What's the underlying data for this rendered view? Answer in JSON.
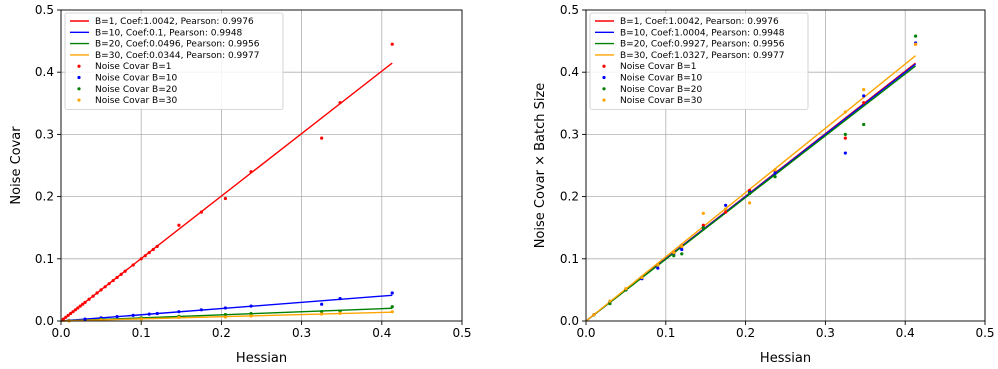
{
  "colors": {
    "B1": "#ff0000",
    "B10": "#0000ff",
    "B20": "#008000",
    "B30": "#ffa500"
  },
  "chart_data": [
    {
      "type": "scatter",
      "xlabel": "Hessian",
      "ylabel": "Noise Covar",
      "xlim": [
        0.0,
        0.5
      ],
      "ylim": [
        0.0,
        0.5
      ],
      "xticks": [
        "0.0",
        "0.1",
        "0.2",
        "0.3",
        "0.4",
        "0.5"
      ],
      "yticks": [
        "0.0",
        "0.1",
        "0.2",
        "0.3",
        "0.4",
        "0.5"
      ],
      "grid": true,
      "legend_position": "upper-left",
      "lines": [
        {
          "name": "B=1, Coef:1.0042, Pearson: 0.9976",
          "color": "#ff0000",
          "slope": 1.0042,
          "x": [
            0.0,
            0.413
          ]
        },
        {
          "name": "B=10, Coef:0.1, Pearson: 0.9948",
          "color": "#0000ff",
          "slope": 0.1,
          "x": [
            0.0,
            0.413
          ]
        },
        {
          "name": "B=20, Coef:0.0496, Pearson: 0.9956",
          "color": "#008000",
          "slope": 0.0496,
          "x": [
            0.0,
            0.413
          ]
        },
        {
          "name": "B=30, Coef:0.0344, Pearson: 0.9977",
          "color": "#ffa500",
          "slope": 0.0344,
          "x": [
            0.0,
            0.413
          ]
        }
      ],
      "series": [
        {
          "name": "Noise Covar B=1",
          "color": "#ff0000",
          "x": [
            0.003,
            0.006,
            0.009,
            0.012,
            0.015,
            0.018,
            0.021,
            0.024,
            0.027,
            0.03,
            0.035,
            0.04,
            0.045,
            0.05,
            0.055,
            0.06,
            0.065,
            0.07,
            0.075,
            0.08,
            0.09,
            0.1,
            0.105,
            0.11,
            0.115,
            0.12,
            0.147,
            0.175,
            0.205,
            0.237,
            0.325,
            0.348,
            0.413
          ],
          "y": [
            0.003,
            0.006,
            0.009,
            0.012,
            0.015,
            0.018,
            0.021,
            0.024,
            0.027,
            0.03,
            0.035,
            0.04,
            0.045,
            0.05,
            0.055,
            0.06,
            0.065,
            0.07,
            0.075,
            0.08,
            0.09,
            0.1,
            0.105,
            0.11,
            0.115,
            0.12,
            0.154,
            0.175,
            0.197,
            0.24,
            0.294,
            0.351,
            0.445
          ]
        },
        {
          "name": "Noise Covar B=10",
          "color": "#0000ff",
          "x": [
            0.01,
            0.03,
            0.05,
            0.07,
            0.09,
            0.11,
            0.12,
            0.147,
            0.175,
            0.205,
            0.237,
            0.325,
            0.348,
            0.413
          ],
          "y": [
            0.001,
            0.003,
            0.005,
            0.007,
            0.009,
            0.011,
            0.012,
            0.015,
            0.018,
            0.021,
            0.024,
            0.027,
            0.036,
            0.045
          ]
        },
        {
          "name": "Noise Covar B=20",
          "color": "#008000",
          "x": [
            0.01,
            0.05,
            0.1,
            0.147,
            0.205,
            0.237,
            0.325,
            0.348,
            0.413
          ],
          "y": [
            0.0005,
            0.0025,
            0.005,
            0.0074,
            0.0102,
            0.0118,
            0.015,
            0.0158,
            0.023
          ]
        },
        {
          "name": "Noise Covar B=30",
          "color": "#ffa500",
          "x": [
            0.01,
            0.05,
            0.1,
            0.147,
            0.205,
            0.237,
            0.325,
            0.348,
            0.413
          ],
          "y": [
            0.0003,
            0.0017,
            0.0034,
            0.0058,
            0.0064,
            0.0081,
            0.0112,
            0.0124,
            0.0148
          ]
        }
      ]
    },
    {
      "type": "scatter",
      "xlabel": "Hessian",
      "ylabel": "Noise Covar × Batch Size",
      "xlim": [
        0.0,
        0.5
      ],
      "ylim": [
        0.0,
        0.5
      ],
      "xticks": [
        "0.0",
        "0.1",
        "0.2",
        "0.3",
        "0.4",
        "0.5"
      ],
      "yticks": [
        "0.0",
        "0.1",
        "0.2",
        "0.3",
        "0.4",
        "0.5"
      ],
      "grid": true,
      "legend_position": "upper-left",
      "lines": [
        {
          "name": "B=1, Coef:1.0042, Pearson: 0.9976",
          "color": "#ff0000",
          "slope": 1.0042,
          "x": [
            0.0,
            0.413
          ]
        },
        {
          "name": "B=10, Coef:1.0004, Pearson: 0.9948",
          "color": "#0000ff",
          "slope": 1.0004,
          "x": [
            0.0,
            0.413
          ]
        },
        {
          "name": "B=20, Coef:0.9927, Pearson: 0.9956",
          "color": "#008000",
          "slope": 0.9927,
          "x": [
            0.0,
            0.413
          ]
        },
        {
          "name": "B=30, Coef:1.0327, Pearson: 0.9977",
          "color": "#ffa500",
          "slope": 1.0327,
          "x": [
            0.0,
            0.413
          ]
        }
      ],
      "series": [
        {
          "name": "Noise Covar B=1",
          "color": "#ff0000",
          "x": [
            0.01,
            0.03,
            0.05,
            0.07,
            0.09,
            0.11,
            0.12,
            0.147,
            0.175,
            0.205,
            0.237,
            0.325,
            0.348,
            0.413
          ],
          "y": [
            0.01,
            0.03,
            0.05,
            0.07,
            0.09,
            0.11,
            0.12,
            0.154,
            0.175,
            0.21,
            0.24,
            0.294,
            0.351,
            0.445
          ]
        },
        {
          "name": "Noise Covar B=10",
          "color": "#0000ff",
          "x": [
            0.01,
            0.03,
            0.05,
            0.07,
            0.09,
            0.11,
            0.12,
            0.147,
            0.175,
            0.205,
            0.237,
            0.325,
            0.348,
            0.413
          ],
          "y": [
            0.01,
            0.03,
            0.05,
            0.068,
            0.085,
            0.108,
            0.115,
            0.15,
            0.186,
            0.207,
            0.238,
            0.27,
            0.362,
            0.447
          ]
        },
        {
          "name": "Noise Covar B=20",
          "color": "#008000",
          "x": [
            0.01,
            0.03,
            0.05,
            0.07,
            0.09,
            0.11,
            0.12,
            0.147,
            0.175,
            0.205,
            0.237,
            0.325,
            0.348,
            0.413
          ],
          "y": [
            0.01,
            0.028,
            0.05,
            0.07,
            0.09,
            0.105,
            0.108,
            0.15,
            0.18,
            0.205,
            0.232,
            0.3,
            0.316,
            0.458
          ]
        },
        {
          "name": "Noise Covar B=30",
          "color": "#ffa500",
          "x": [
            0.01,
            0.03,
            0.05,
            0.07,
            0.09,
            0.11,
            0.12,
            0.147,
            0.175,
            0.205,
            0.237,
            0.325,
            0.348,
            0.413
          ],
          "y": [
            0.01,
            0.032,
            0.052,
            0.07,
            0.09,
            0.11,
            0.12,
            0.173,
            0.18,
            0.19,
            0.243,
            0.336,
            0.372,
            0.445
          ]
        }
      ]
    }
  ]
}
